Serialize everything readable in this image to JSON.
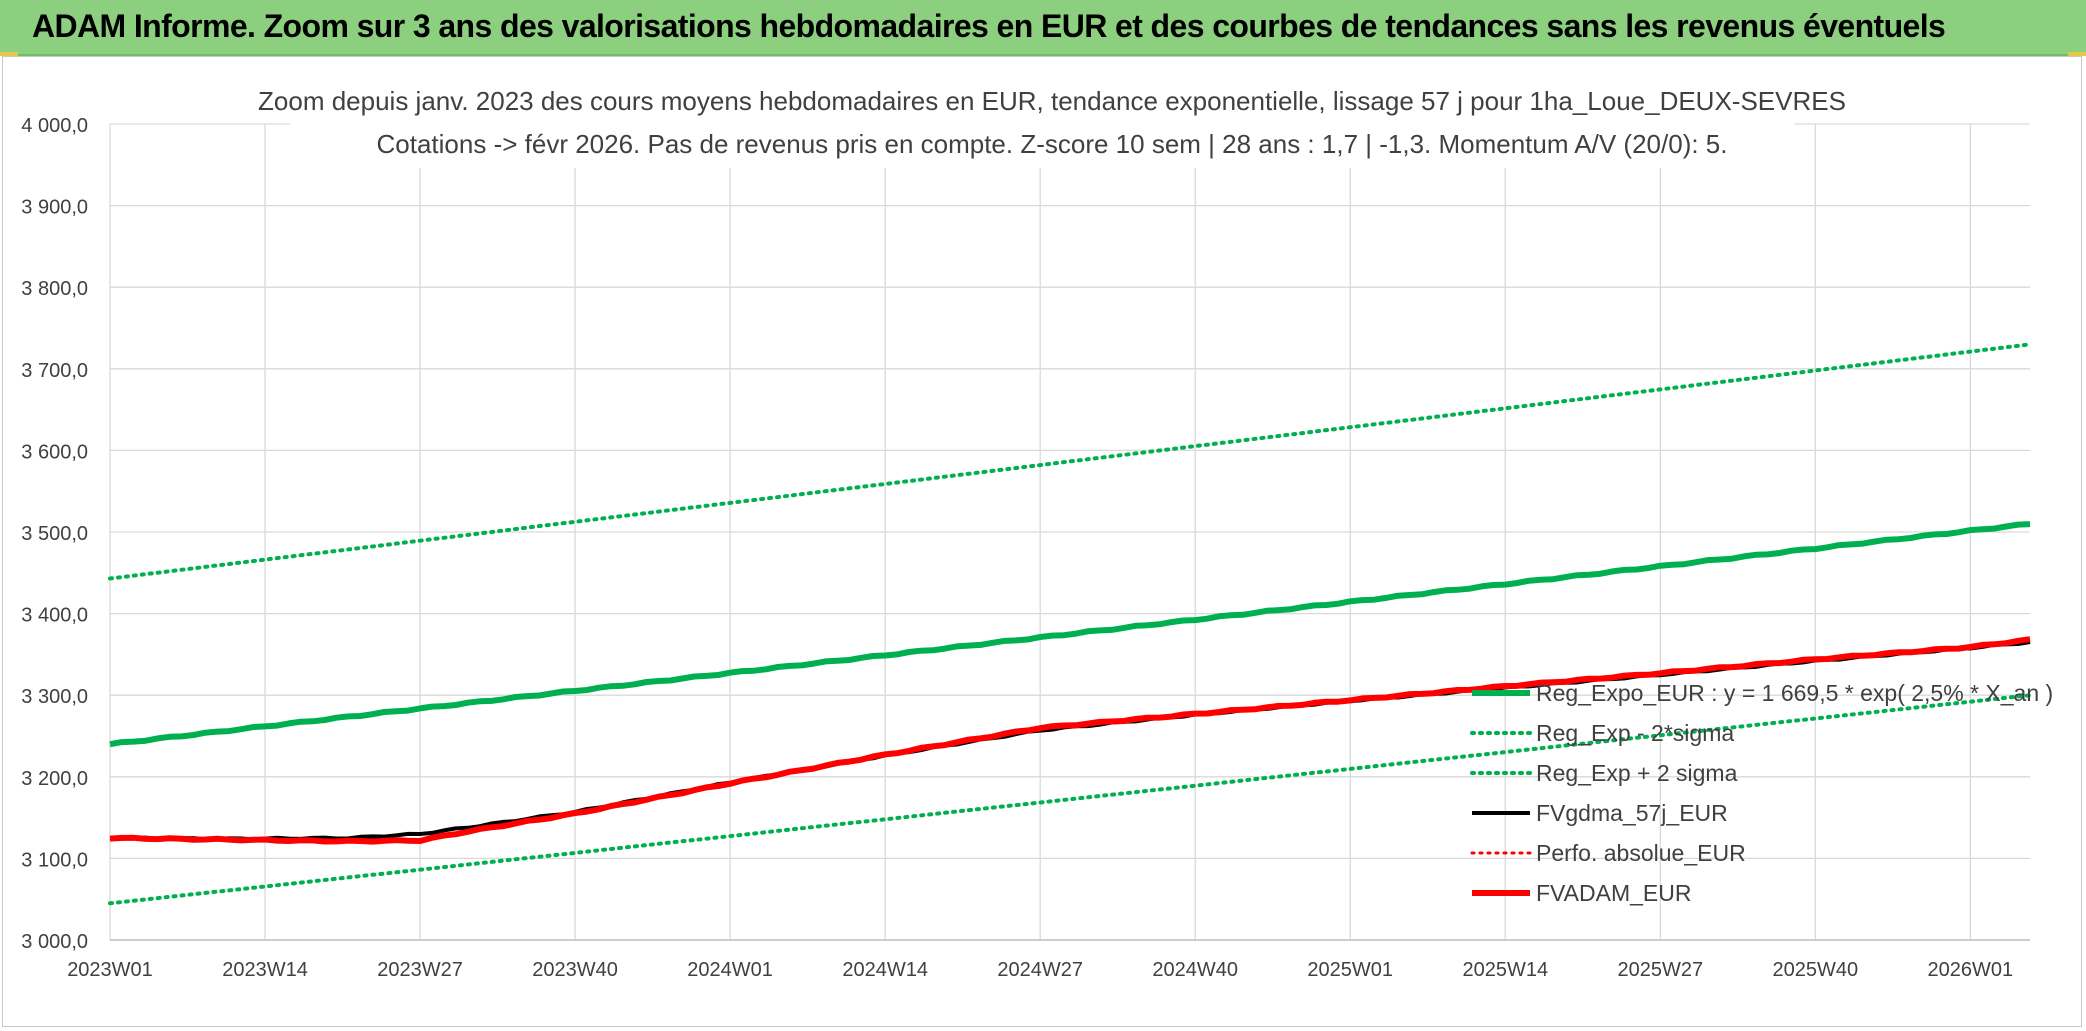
{
  "banner": {
    "title": "ADAM Informe. Zoom sur 3 ans des valorisations hebdomadaires en EUR et des courbes de tendances sans les revenus éventuels",
    "bg_color": "#8cd07f"
  },
  "chart_data": {
    "type": "line",
    "title": "Zoom depuis janv. 2023 des cours moyens hebdomadaires en EUR, tendance exponentielle, lissage 57 j pour 1ha_Loue_DEUX-SEVRES",
    "subtitle": "Cotations -> févr 2026. Pas de revenus pris en compte. Z-score 10 sem | 28 ans : 1,7 | -1,3. Momentum A/V (20/0): 5.",
    "xlabel": "",
    "ylabel": "",
    "x_count": 162,
    "x_ticks": [
      {
        "i": 0,
        "label": "2023W01"
      },
      {
        "i": 13,
        "label": "2023W14"
      },
      {
        "i": 26,
        "label": "2023W27"
      },
      {
        "i": 39,
        "label": "2023W40"
      },
      {
        "i": 52,
        "label": "2024W01"
      },
      {
        "i": 65,
        "label": "2024W14"
      },
      {
        "i": 78,
        "label": "2024W27"
      },
      {
        "i": 91,
        "label": "2024W40"
      },
      {
        "i": 104,
        "label": "2025W01"
      },
      {
        "i": 117,
        "label": "2025W14"
      },
      {
        "i": 130,
        "label": "2025W27"
      },
      {
        "i": 143,
        "label": "2025W40"
      },
      {
        "i": 156,
        "label": "2026W01"
      }
    ],
    "y_ticks": [
      3000,
      3100,
      3200,
      3300,
      3400,
      3500,
      3600,
      3700,
      3800,
      3900,
      4000
    ],
    "y_tick_labels": [
      "3 000,0",
      "3 100,0",
      "3 200,0",
      "3 300,0",
      "3 400,0",
      "3 500,0",
      "3 600,0",
      "3 700,0",
      "3 800,0",
      "3 900,0",
      "4 000,0"
    ],
    "ylim": [
      3000,
      4000
    ],
    "grid": true,
    "legend_position": "right",
    "series": [
      {
        "name": "Reg_Expo_EUR : y = 1 669,5 * exp( 2,5% * X_an )",
        "color": "#00b050",
        "style": "solid",
        "width": 6,
        "points": [
          [
            0,
            3240
          ],
          [
            161,
            3510
          ]
        ]
      },
      {
        "name": "Reg_Exp - 2*sigma",
        "color": "#00b050",
        "style": "dotted",
        "width": 4,
        "points": [
          [
            0,
            3045
          ],
          [
            161,
            3300
          ]
        ]
      },
      {
        "name": "Reg_Exp + 2 sigma",
        "color": "#00b050",
        "style": "dotted",
        "width": 4,
        "points": [
          [
            0,
            3443
          ],
          [
            161,
            3730
          ]
        ]
      },
      {
        "name": "FVgdma_57j_EUR",
        "color": "#000000",
        "style": "solid",
        "width": 4,
        "points": [
          [
            0,
            3125
          ],
          [
            10,
            3124
          ],
          [
            20,
            3125
          ],
          [
            26,
            3130
          ],
          [
            30,
            3138
          ],
          [
            39,
            3157
          ],
          [
            52,
            3193
          ],
          [
            65,
            3226
          ],
          [
            78,
            3257
          ],
          [
            91,
            3276
          ],
          [
            104,
            3293
          ],
          [
            117,
            3309
          ],
          [
            130,
            3325
          ],
          [
            143,
            3342
          ],
          [
            156,
            3358
          ],
          [
            161,
            3365
          ]
        ]
      },
      {
        "name": "Perfo. absolue_EUR",
        "color": "#ff0000",
        "style": "dotted",
        "width": 3,
        "points": []
      },
      {
        "name": "FVADAM_EUR",
        "color": "#ff0000",
        "style": "solid",
        "width": 6,
        "points": [
          [
            0,
            3125
          ],
          [
            10,
            3123
          ],
          [
            20,
            3121
          ],
          [
            26,
            3122
          ],
          [
            30,
            3133
          ],
          [
            39,
            3155
          ],
          [
            52,
            3192
          ],
          [
            65,
            3227
          ],
          [
            78,
            3260
          ],
          [
            91,
            3277
          ],
          [
            104,
            3294
          ],
          [
            117,
            3311
          ],
          [
            130,
            3327
          ],
          [
            143,
            3344
          ],
          [
            156,
            3359
          ],
          [
            161,
            3368
          ]
        ]
      }
    ]
  }
}
